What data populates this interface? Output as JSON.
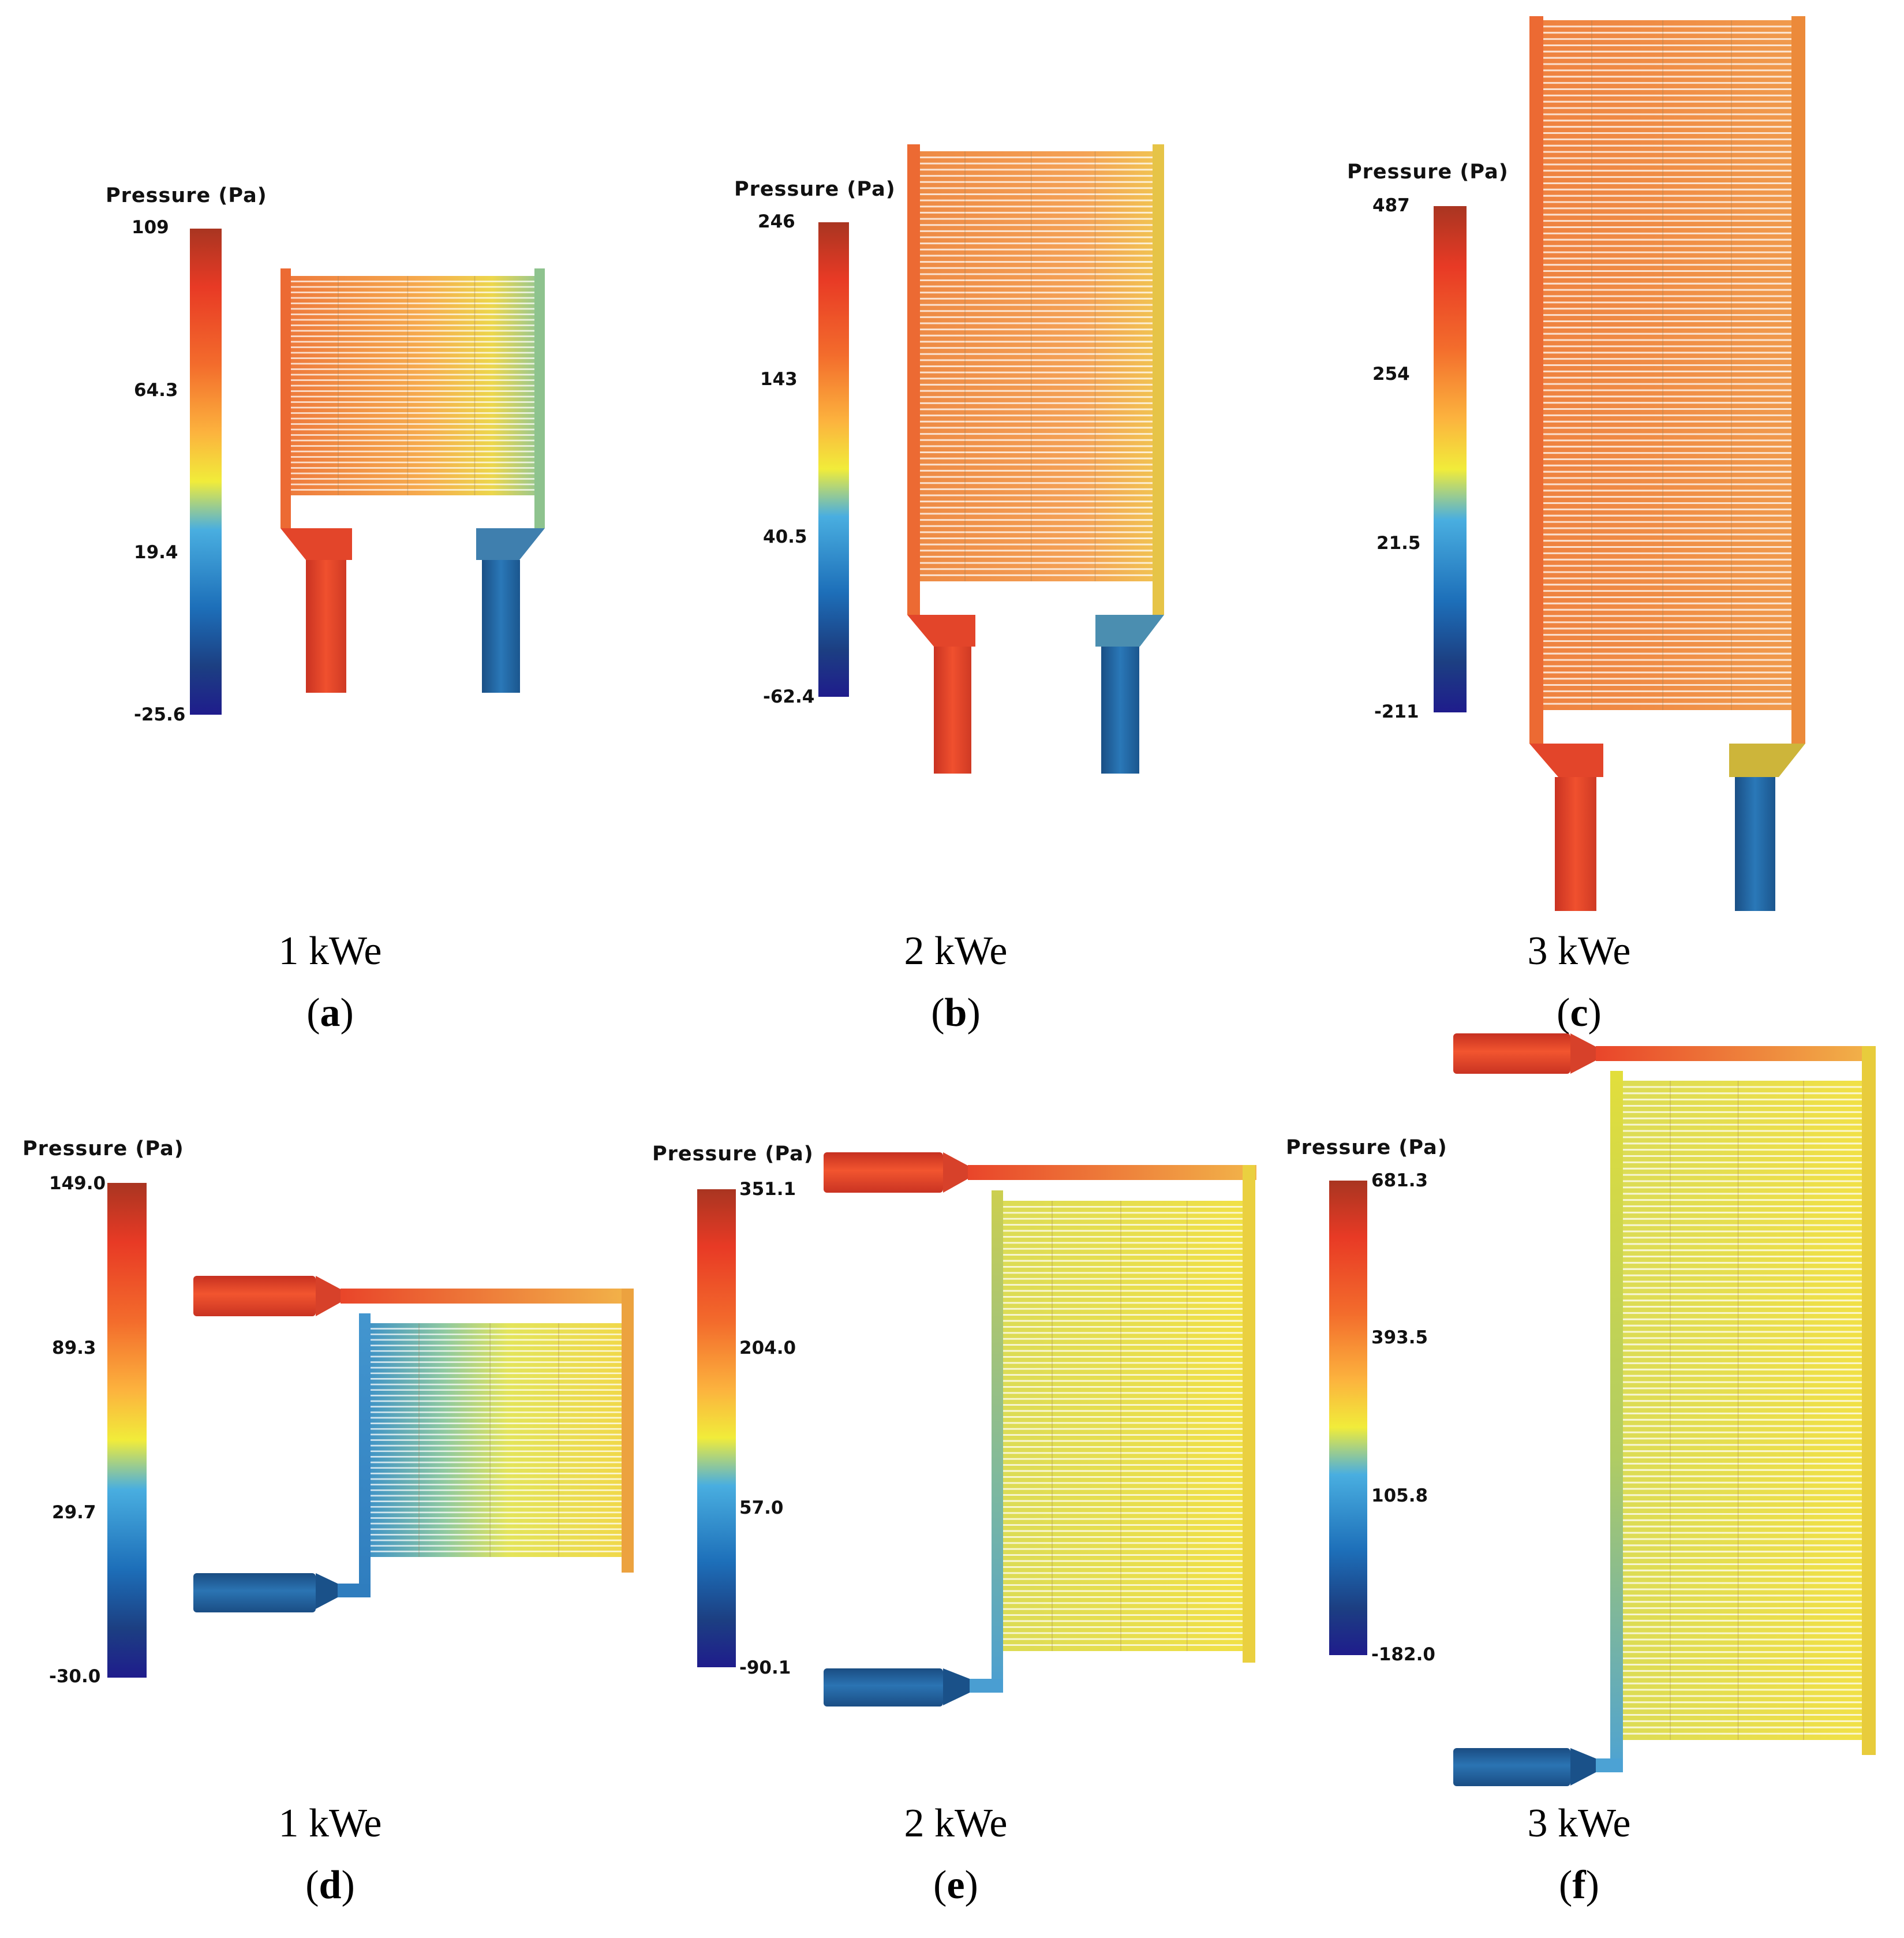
{
  "colormap": [
    "#1f1c8c",
    "#1c3f82",
    "#1d6fb9",
    "#49aee0",
    "#f1ec3a",
    "#fcb33e",
    "#f36c2c",
    "#e83a25",
    "#a93521"
  ],
  "panels": [
    {
      "id": "a",
      "letter": "a",
      "caption": "1 kWe",
      "colorbar": {
        "title": "Pressure (Pa)",
        "ticks": [
          "109",
          "64.3",
          "19.4",
          "-25.6"
        ]
      }
    },
    {
      "id": "b",
      "letter": "b",
      "caption": "2 kWe",
      "colorbar": {
        "title": "Pressure (Pa)",
        "ticks": [
          "246",
          "143",
          "40.5",
          "-62.4"
        ]
      }
    },
    {
      "id": "c",
      "letter": "c",
      "caption": "3 kWe",
      "colorbar": {
        "title": "Pressure (Pa)",
        "ticks": [
          "487",
          "254",
          "21.5",
          "-211"
        ]
      }
    },
    {
      "id": "d",
      "letter": "d",
      "caption": "1 kWe",
      "colorbar": {
        "title": "Pressure (Pa)",
        "ticks": [
          "149.0",
          "89.3",
          "29.7",
          "-30.0"
        ]
      }
    },
    {
      "id": "e",
      "letter": "e",
      "caption": "2 kWe",
      "colorbar": {
        "title": "Pressure (Pa)",
        "ticks": [
          "351.1",
          "204.0",
          "57.0",
          "-90.1"
        ]
      }
    },
    {
      "id": "f",
      "letter": "f",
      "caption": "3 kWe",
      "colorbar": {
        "title": "Pressure (Pa)",
        "ticks": [
          "681.3",
          "393.5",
          "105.8",
          "-182.0"
        ]
      }
    }
  ]
}
